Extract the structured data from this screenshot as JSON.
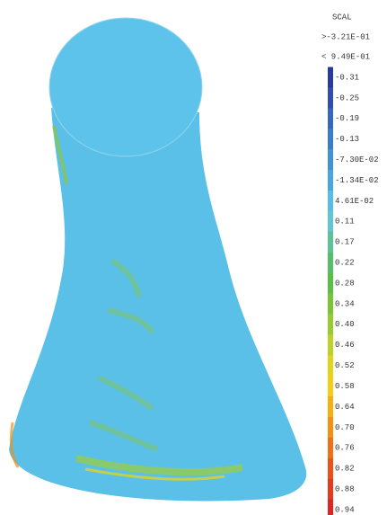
{
  "legend": {
    "title": "SCAL",
    "max_label": ">-3.21E-01",
    "min_label": "< 9.49E-01",
    "entries": [
      {
        "label": "-0.31",
        "color": "#2a3a9c"
      },
      {
        "label": "-0.25",
        "color": "#2f4fb0"
      },
      {
        "label": "-0.19",
        "color": "#3566c0"
      },
      {
        "label": "-0.13",
        "color": "#3a7dcc"
      },
      {
        "label": "-7.30E-02",
        "color": "#3f93d6"
      },
      {
        "label": "-1.34E-02",
        "color": "#47a8df"
      },
      {
        "label": "4.61E-02",
        "color": "#55bde6"
      },
      {
        "label": "0.11",
        "color": "#5fc6d2"
      },
      {
        "label": "0.17",
        "color": "#5cc29a"
      },
      {
        "label": "0.22",
        "color": "#56bd6a"
      },
      {
        "label": "0.28",
        "color": "#5cbf45"
      },
      {
        "label": "0.34",
        "color": "#79c536"
      },
      {
        "label": "0.40",
        "color": "#98cc2c"
      },
      {
        "label": "0.46",
        "color": "#bdd224"
      },
      {
        "label": "0.52",
        "color": "#e0d51c"
      },
      {
        "label": "0.58",
        "color": "#f6cc16"
      },
      {
        "label": "0.64",
        "color": "#f7b012"
      },
      {
        "label": "0.70",
        "color": "#f49012"
      },
      {
        "label": "0.76",
        "color": "#ef7015"
      },
      {
        "label": "0.82",
        "color": "#ea5219"
      },
      {
        "label": "0.88",
        "color": "#e53a1e"
      },
      {
        "label": "0.94",
        "color": "#e02424"
      }
    ]
  }
}
